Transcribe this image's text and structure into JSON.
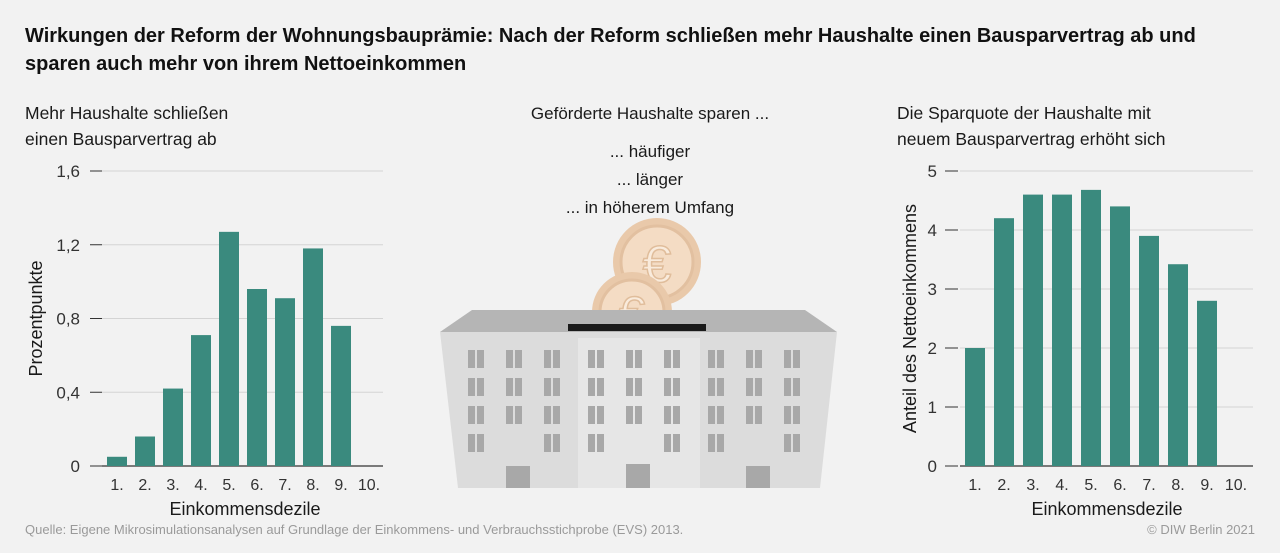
{
  "title": "Wirkungen der Reform der Wohnungsbauprämie: Nach der Reform schließen mehr Haushalte einen Bausparvertrag ab und sparen auch mehr von ihrem Nettoeinkommen",
  "left_panel": {
    "title_line1": "Mehr Haushalte schließen",
    "title_line2": "einen Bausparvertrag ab"
  },
  "center_panel": {
    "heading": "Geförderte Haushalte sparen ...",
    "line1": "... häufiger",
    "line2": "... länger",
    "line3": "... in höherem Umfang",
    "coin_symbol": "€",
    "illustration": "piggy-bank-building-with-euro-coins"
  },
  "right_panel": {
    "title_line1": "Die Sparquote der Haushalte mit",
    "title_line2": "neuem Bausparvertrag erhöht sich"
  },
  "footer": {
    "source": "Quelle:  Eigene Mikrosimulationsanalysen auf Grundlage der Einkommens- und Verbrauchsstichprobe (EVS) 2013.",
    "copyright": "© DIW Berlin 2021"
  },
  "colors": {
    "bar": "#3a8a7e",
    "grid": "#d4d4d4",
    "axis": "#333333",
    "building": "#d9d9d9",
    "building_roof": "#b3b3b3",
    "window": "#a8a8a8",
    "coin": "#f1d6bb"
  },
  "chart_data": [
    {
      "type": "bar",
      "title": "Mehr Haushalte schließen einen Bausparvertrag ab",
      "categories": [
        "1.",
        "2.",
        "3.",
        "4.",
        "5.",
        "6.",
        "7.",
        "8.",
        "9.",
        "10."
      ],
      "values": [
        0.05,
        0.16,
        0.42,
        0.71,
        1.27,
        0.96,
        0.91,
        1.18,
        0.76,
        0
      ],
      "xlabel": "Einkommensdezile",
      "ylabel": "Prozentpunkte",
      "ylim": [
        0,
        1.6
      ],
      "yticks": [
        0,
        0.4,
        0.8,
        1.2,
        1.6
      ],
      "ytick_labels": [
        "0",
        "0,4",
        "0,8",
        "1,2",
        "1,6"
      ],
      "grid": true
    },
    {
      "type": "bar",
      "title": "Die Sparquote der Haushalte mit neuem Bausparvertrag erhöht sich",
      "categories": [
        "1.",
        "2.",
        "3.",
        "4.",
        "5.",
        "6.",
        "7.",
        "8.",
        "9.",
        "10."
      ],
      "values": [
        2.0,
        4.2,
        4.6,
        4.6,
        4.68,
        4.4,
        3.9,
        3.42,
        2.8,
        0
      ],
      "xlabel": "Einkommensdezile",
      "ylabel": "Anteil des Nettoeinkommens",
      "ylim": [
        0,
        5
      ],
      "yticks": [
        0,
        1,
        2,
        3,
        4,
        5
      ],
      "ytick_labels": [
        "0",
        "1",
        "2",
        "3",
        "4",
        "5"
      ],
      "grid": true
    }
  ]
}
